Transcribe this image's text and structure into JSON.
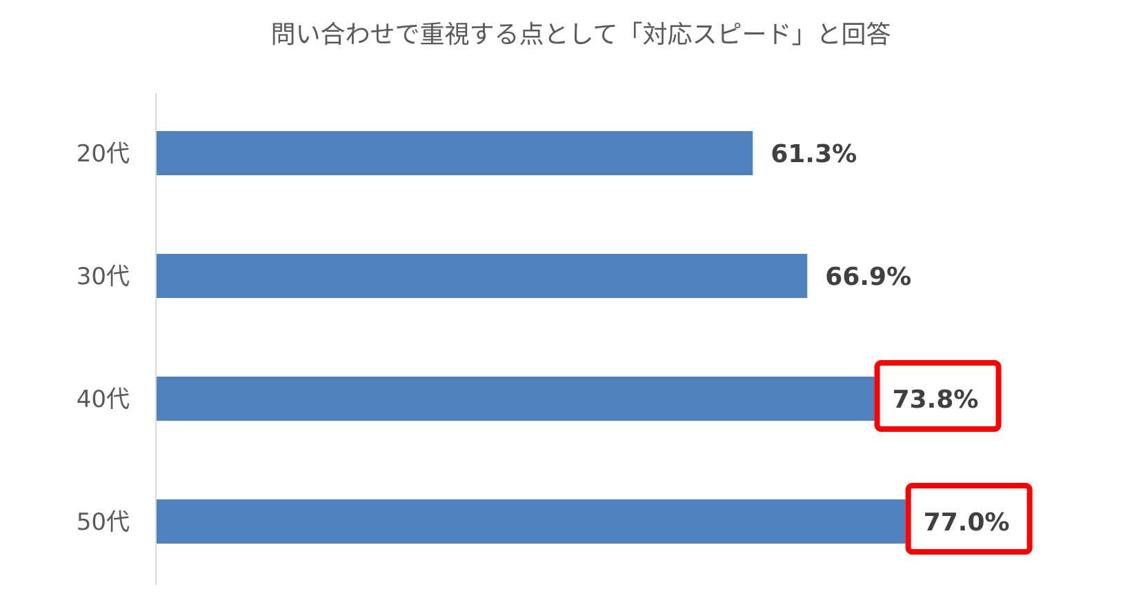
{
  "chart_data": {
    "type": "bar",
    "orientation": "horizontal",
    "title": "問い合わせで重視する点として「対応スピード」と回答",
    "categories": [
      "20代",
      "30代",
      "40代",
      "50代"
    ],
    "values": [
      61.3,
      66.9,
      73.8,
      77.0
    ],
    "data_labels": [
      "61.3%",
      "66.9%",
      "73.8%",
      "77.0%"
    ],
    "highlighted": [
      false,
      false,
      true,
      true
    ],
    "xlim": [
      0,
      80
    ],
    "grid": false,
    "legend": "none",
    "bar_color": "#4f81bd",
    "highlight_color": "#ff0000",
    "axis_color": "#d9d9d9",
    "text_color": "#595959",
    "label_color": "#404040"
  }
}
